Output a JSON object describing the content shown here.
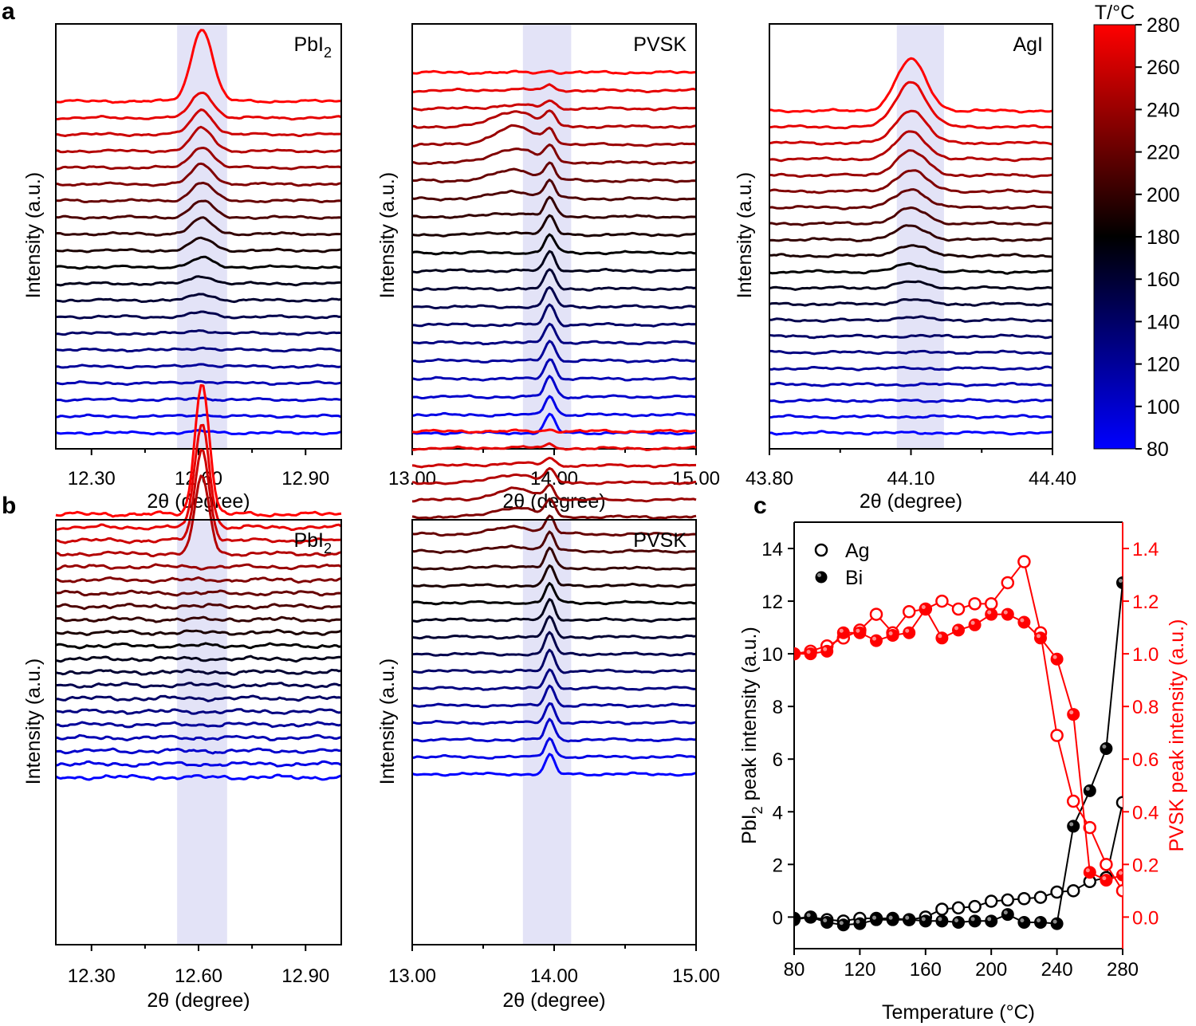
{
  "figure": {
    "panel_labels": [
      "a",
      "b",
      "c"
    ],
    "colorbar": {
      "title": "T/°C",
      "min": 80,
      "max": 280,
      "ticks": [
        80,
        100,
        120,
        140,
        160,
        180,
        200,
        220,
        240,
        260,
        280
      ],
      "stops": [
        {
          "t": 80,
          "color": "#0000ff"
        },
        {
          "t": 180,
          "color": "#000000"
        },
        {
          "t": 280,
          "color": "#ff0000"
        }
      ]
    },
    "trace_temperatures": [
      80,
      90,
      100,
      110,
      120,
      130,
      140,
      150,
      160,
      170,
      180,
      190,
      200,
      210,
      220,
      230,
      240,
      250,
      260,
      270,
      280
    ]
  },
  "chart_data": [
    {
      "id": "a-pbi2",
      "panel": "a",
      "type": "line",
      "label": "PbI",
      "label_sub": "2",
      "xlabel": "2θ (degree)",
      "ylabel": "Intensity (a.u.)",
      "xlim": [
        12.2,
        13.0
      ],
      "xticks": [
        "12.30",
        "12.60",
        "12.90"
      ],
      "xtick_values": [
        12.3,
        12.6,
        12.9
      ],
      "band": [
        12.54,
        12.68
      ],
      "peak_center": 12.61,
      "peak_width": 0.042,
      "peak_heights": [
        0.1,
        0.1,
        0.1,
        0.12,
        0.15,
        0.15,
        0.2,
        0.3,
        0.4,
        0.5,
        0.6,
        0.8,
        1.0,
        1.1,
        1.2,
        1.3,
        1.4,
        1.5,
        1.6,
        1.7,
        4.8
      ],
      "broad_center": null,
      "broad_heights": null
    },
    {
      "id": "a-pvsk",
      "panel": "a",
      "type": "line",
      "label": "PVSK",
      "label_sub": "",
      "xlabel": "2θ (degree)",
      "ylabel": "Intensity (a.u.)",
      "xlim": [
        13.0,
        15.0
      ],
      "xticks": [
        "13.00",
        "14.00",
        "15.00"
      ],
      "xtick_values": [
        13.0,
        14.0,
        15.0
      ],
      "band": [
        13.78,
        14.12
      ],
      "peak_center": 13.97,
      "peak_width": 0.05,
      "peak_heights": [
        1.5,
        1.6,
        1.7,
        1.7,
        1.7,
        1.7,
        1.7,
        1.6,
        1.6,
        1.6,
        1.5,
        1.5,
        1.5,
        1.4,
        1.3,
        1.2,
        1.1,
        1.0,
        0.6,
        0.4,
        0.15
      ],
      "broad_center": 13.72,
      "broad_heights": [
        0,
        0,
        0,
        0,
        0,
        0,
        0,
        0,
        0,
        0,
        0,
        0.2,
        0.3,
        0.6,
        0.9,
        1.2,
        1.5,
        1.3,
        0.3,
        0.1,
        0
      ]
    },
    {
      "id": "a-agi",
      "panel": "a",
      "type": "line",
      "label": "AgI",
      "label_sub": "",
      "xlabel": "2θ (degree)",
      "ylabel": "Intensity (a.u.)",
      "xlim": [
        43.8,
        44.4
      ],
      "xticks": [
        "43.80",
        "44.10",
        "44.40"
      ],
      "xtick_values": [
        43.8,
        44.1,
        44.4
      ],
      "band": [
        44.07,
        44.17
      ],
      "peak_center": 44.1,
      "peak_width": 0.045,
      "peak_heights": [
        0,
        0,
        0,
        0,
        0,
        0,
        0,
        0.2,
        0.3,
        0.4,
        0.5,
        0.7,
        0.9,
        1.0,
        1.2,
        1.4,
        1.6,
        1.8,
        2.2,
        3.0,
        3.4
      ],
      "broad_center": null,
      "broad_heights": null
    },
    {
      "id": "b-pbi2",
      "panel": "b",
      "type": "line",
      "label": "PbI",
      "label_sub": "2",
      "xlabel": "2θ (degree)",
      "ylabel": "Intensity (a.u.)",
      "xlim": [
        12.2,
        13.0
      ],
      "xticks": [
        "12.30",
        "12.60",
        "12.90"
      ],
      "xtick_values": [
        12.3,
        12.6,
        12.9
      ],
      "band": [
        12.54,
        12.68
      ],
      "peak_center": 12.61,
      "peak_width": 0.028,
      "peak_heights": [
        0,
        0,
        0,
        0,
        0,
        0,
        0,
        0,
        0,
        0,
        0,
        0,
        0,
        0,
        0,
        0,
        0,
        5.5,
        6.5,
        7.5,
        9.5
      ],
      "broad_center": null,
      "broad_heights": null
    },
    {
      "id": "b-pvsk",
      "panel": "b",
      "type": "line",
      "label": "PVSK",
      "label_sub": "",
      "xlabel": "2θ (degree)",
      "ylabel": "Intensity (a.u.)",
      "xlim": [
        13.0,
        15.0
      ],
      "xticks": [
        "13.00",
        "14.00",
        "15.00"
      ],
      "xtick_values": [
        13.0,
        14.0,
        15.0
      ],
      "band": [
        13.78,
        14.12
      ],
      "peak_center": 13.97,
      "peak_width": 0.045,
      "peak_heights": [
        1.6,
        1.6,
        1.7,
        1.7,
        1.7,
        1.7,
        1.8,
        1.8,
        1.7,
        1.7,
        1.6,
        1.6,
        1.6,
        1.5,
        1.4,
        1.3,
        1.1,
        1.0,
        0.6,
        0.3,
        0.15
      ],
      "broad_center": 13.72,
      "broad_heights": [
        0,
        0,
        0,
        0,
        0,
        0,
        0,
        0,
        0,
        0,
        0,
        0,
        0.2,
        0.4,
        0.6,
        0.8,
        0.9,
        0.7,
        0.2,
        0.1,
        0
      ]
    },
    {
      "id": "c-intensity",
      "panel": "c",
      "type": "scatter",
      "xlabel": "Temperature (°C)",
      "ylabel_left": "PbI",
      "ylabel_left_sub": "2",
      "ylabel_left_rest": " peak intensity (a.u.)",
      "ylabel_right": "PVSK peak intensity (a.u.)",
      "xlim": [
        80,
        280
      ],
      "xticks": [
        80,
        120,
        160,
        200,
        240,
        280
      ],
      "ylim_left": [
        -1.2,
        15
      ],
      "yticks_left": [
        0,
        2,
        4,
        6,
        8,
        10,
        12,
        14
      ],
      "ylim_right": [
        -0.12,
        1.5
      ],
      "yticks_right": [
        "0.0",
        "0.2",
        "0.4",
        "0.6",
        "0.8",
        "1.0",
        "1.2",
        "1.4"
      ],
      "legend": [
        {
          "label": "Ag",
          "marker": "open"
        },
        {
          "label": "Bi",
          "marker": "filled"
        }
      ],
      "x": [
        80,
        90,
        100,
        110,
        120,
        130,
        140,
        150,
        160,
        170,
        180,
        190,
        200,
        210,
        220,
        230,
        240,
        250,
        260,
        270,
        280
      ],
      "series": [
        {
          "name": "Ag PbI2",
          "axis": "left",
          "color": "#000000",
          "marker": "open",
          "values": [
            -0.05,
            0.0,
            -0.1,
            -0.15,
            -0.05,
            -0.05,
            -0.05,
            -0.1,
            0.0,
            0.3,
            0.35,
            0.4,
            0.6,
            0.65,
            0.7,
            0.75,
            0.95,
            1.0,
            1.35,
            1.5,
            4.35
          ]
        },
        {
          "name": "Bi PbI2",
          "axis": "left",
          "color": "#000000",
          "marker": "filled",
          "values": [
            -0.1,
            0.0,
            -0.2,
            -0.3,
            -0.25,
            -0.1,
            -0.1,
            -0.1,
            -0.15,
            -0.15,
            -0.2,
            -0.15,
            -0.15,
            0.1,
            -0.2,
            -0.2,
            -0.25,
            3.45,
            4.8,
            6.4,
            12.7
          ]
        },
        {
          "name": "Ag PVSK",
          "axis": "right",
          "color": "#ff0000",
          "marker": "open",
          "values": [
            1.0,
            1.01,
            1.03,
            1.06,
            1.09,
            1.15,
            1.08,
            1.16,
            1.17,
            1.2,
            1.17,
            1.19,
            1.19,
            1.27,
            1.35,
            1.08,
            0.69,
            0.44,
            0.34,
            0.2,
            0.1
          ]
        },
        {
          "name": "Bi PVSK",
          "axis": "right",
          "color": "#ff0000",
          "marker": "filled",
          "values": [
            1.0,
            1.0,
            1.01,
            1.08,
            1.08,
            1.05,
            1.07,
            1.08,
            1.17,
            1.06,
            1.09,
            1.11,
            1.15,
            1.15,
            1.12,
            1.06,
            0.98,
            0.77,
            0.17,
            0.14,
            0.16
          ]
        }
      ]
    }
  ]
}
